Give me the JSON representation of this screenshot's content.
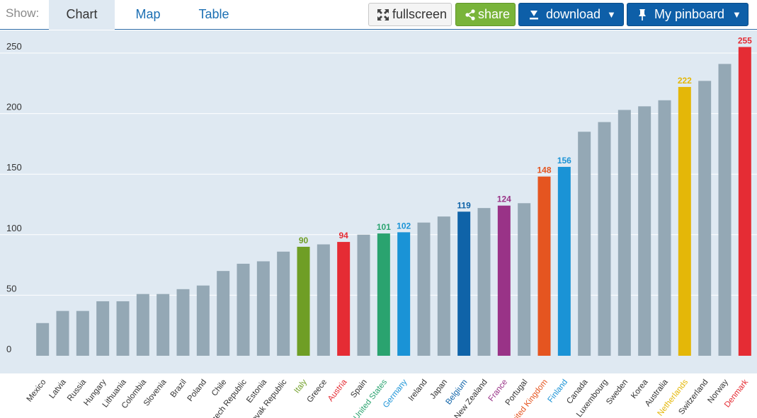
{
  "toolbar": {
    "show_label": "Show:",
    "tabs": [
      {
        "label": "Chart",
        "active": true
      },
      {
        "label": "Map",
        "active": false
      },
      {
        "label": "Table",
        "active": false
      }
    ],
    "fullscreen_label": "fullscreen",
    "share_label": "share",
    "download_label": "download",
    "pinboard_label": "My pinboard",
    "caret": "▼"
  },
  "colors": {
    "default_bar": "#94a8b5",
    "grid": "#ffffff",
    "plot_bg": "#dfe9f2",
    "tick_text": "#333333"
  },
  "chart_data": {
    "type": "bar",
    "ylim": [
      0,
      250
    ],
    "yticks": [
      0,
      50,
      100,
      150,
      200,
      250
    ],
    "grid": true,
    "categories": [
      "Mexico",
      "Latvia",
      "Russia",
      "Hungary",
      "Lithuania",
      "Colombia",
      "Slovenia",
      "Brazil",
      "Poland",
      "Chile",
      "Czech Republic",
      "Estonia",
      "Slovak Republic",
      "Italy",
      "Greece",
      "Austria",
      "Spain",
      "United States",
      "Germany",
      "Ireland",
      "Japan",
      "Belgium",
      "New Zealand",
      "France",
      "Portugal",
      "United Kingdom",
      "Finland",
      "Canada",
      "Luxembourg",
      "Sweden",
      "Korea",
      "Australia",
      "Netherlands",
      "Switzerland",
      "Norway",
      "Denmark"
    ],
    "values": [
      27,
      37,
      37,
      45,
      45,
      51,
      51,
      55,
      58,
      70,
      76,
      78,
      86,
      90,
      92,
      94,
      100,
      101,
      102,
      110,
      115,
      119,
      122,
      124,
      126,
      148,
      156,
      185,
      193,
      203,
      206,
      211,
      222,
      227,
      241,
      255
    ],
    "highlights": [
      {
        "country": "Italy",
        "value_label": "90",
        "color": "#6f9e25"
      },
      {
        "country": "Austria",
        "value_label": "94",
        "color": "#e52c34"
      },
      {
        "country": "United States",
        "value_label": "101",
        "color": "#2aa36f"
      },
      {
        "country": "Germany",
        "value_label": "102",
        "color": "#1a93d6"
      },
      {
        "country": "Belgium",
        "value_label": "119",
        "color": "#0f63a8"
      },
      {
        "country": "France",
        "value_label": "124",
        "color": "#993387"
      },
      {
        "country": "United Kingdom",
        "value_label": "148",
        "color": "#e55520"
      },
      {
        "country": "Finland",
        "value_label": "156",
        "color": "#1a93d6"
      },
      {
        "country": "Netherlands",
        "value_label": "222",
        "color": "#e4b708"
      },
      {
        "country": "Denmark",
        "value_label": "255",
        "color": "#e52c34"
      }
    ]
  }
}
